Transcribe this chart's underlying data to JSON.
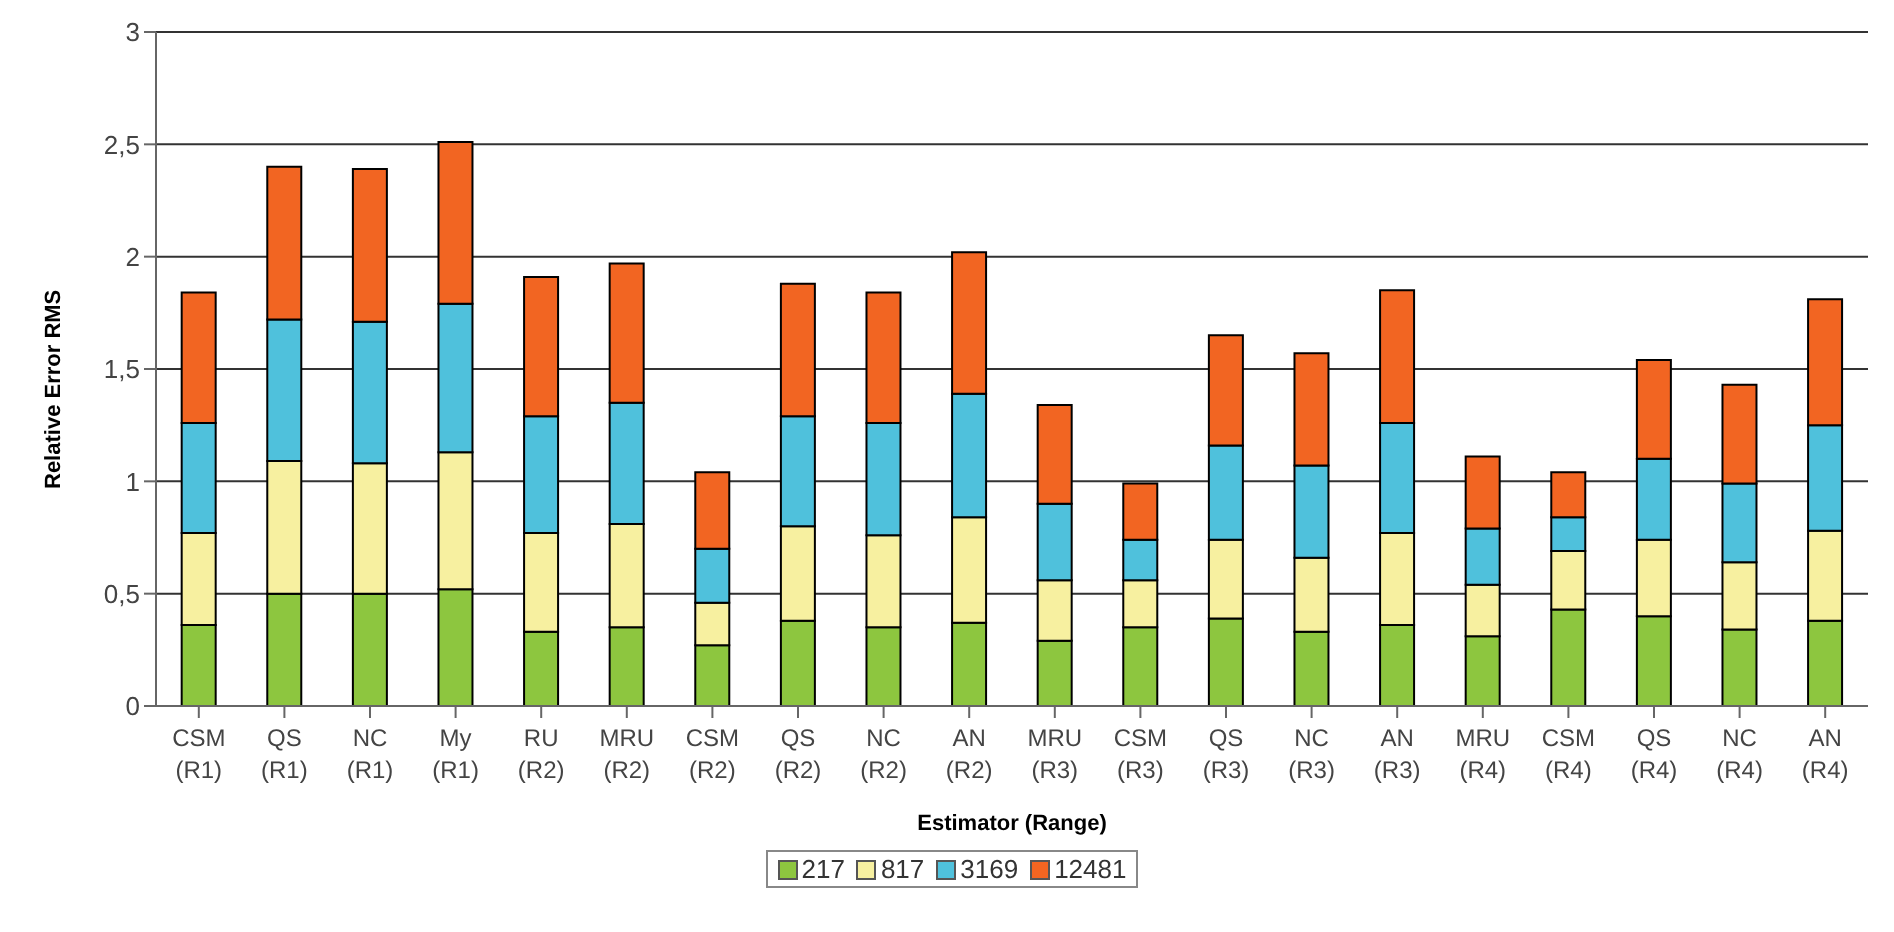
{
  "chart_data": {
    "type": "bar",
    "stacked": true,
    "xlabel": "Estimator (Range)",
    "ylabel": "Relative Error RMS",
    "categories": [
      "CSM\n(R1)",
      "QS\n(R1)",
      "NC\n(R1)",
      "My\n(R1)",
      "RU\n(R2)",
      "MRU\n(R2)",
      "CSM\n(R2)",
      "QS\n(R2)",
      "NC\n(R2)",
      "AN\n(R2)",
      "MRU\n(R3)",
      "CSM\n(R3)",
      "QS\n(R3)",
      "NC\n(R3)",
      "AN\n(R3)",
      "MRU\n(R4)",
      "CSM\n(R4)",
      "QS\n(R4)",
      "NC\n(R4)",
      "AN\n(R4)"
    ],
    "series": [
      {
        "name": "217",
        "color": "#8dc63f",
        "values": [
          0.36,
          0.5,
          0.5,
          0.52,
          0.33,
          0.35,
          0.27,
          0.38,
          0.35,
          0.37,
          0.29,
          0.35,
          0.39,
          0.33,
          0.36,
          0.31,
          0.43,
          0.4,
          0.34,
          0.38
        ]
      },
      {
        "name": "817",
        "color": "#f7f0a0",
        "values": [
          0.41,
          0.59,
          0.58,
          0.61,
          0.44,
          0.46,
          0.19,
          0.42,
          0.41,
          0.47,
          0.27,
          0.21,
          0.35,
          0.33,
          0.41,
          0.23,
          0.26,
          0.34,
          0.3,
          0.4
        ]
      },
      {
        "name": "3169",
        "color": "#4fc1dc",
        "values": [
          0.49,
          0.63,
          0.63,
          0.66,
          0.52,
          0.54,
          0.24,
          0.49,
          0.5,
          0.55,
          0.34,
          0.18,
          0.42,
          0.41,
          0.49,
          0.25,
          0.15,
          0.36,
          0.35,
          0.47
        ]
      },
      {
        "name": "12481",
        "color": "#f26522",
        "values": [
          0.58,
          0.68,
          0.68,
          0.72,
          0.62,
          0.62,
          0.34,
          0.59,
          0.58,
          0.63,
          0.44,
          0.25,
          0.49,
          0.5,
          0.59,
          0.32,
          0.2,
          0.44,
          0.44,
          0.56
        ]
      }
    ],
    "ylim": [
      0,
      3
    ],
    "yticks": [
      0,
      {
        "value": 0.5,
        "label": "0,5"
      },
      1,
      {
        "value": 1.5,
        "label": "1,5"
      },
      2,
      {
        "value": 2.5,
        "label": "2,5"
      },
      3
    ],
    "grid": "y",
    "legend": "bottom"
  }
}
